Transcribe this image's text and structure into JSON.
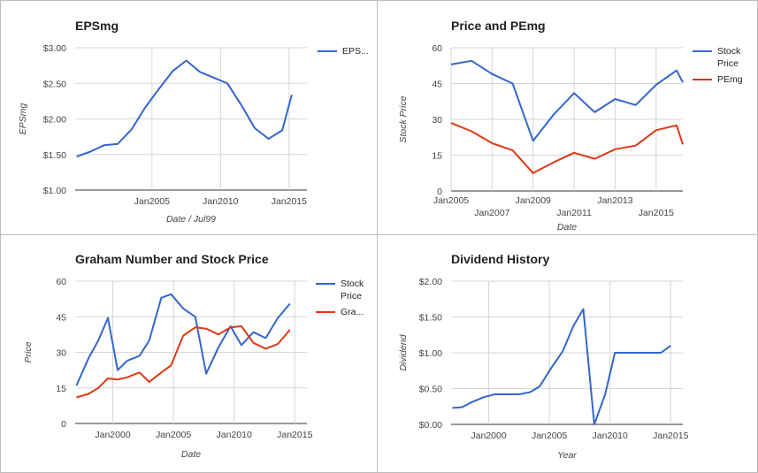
{
  "chart_data": [
    {
      "type": "line",
      "title": "EPSmg",
      "xlabel": "Date / Jul99",
      "ylabel": "EPSmg",
      "xlim": [
        1999.4,
        2016.3
      ],
      "ylim": [
        1.0,
        3.0
      ],
      "yticks": [
        {
          "v": 1.0,
          "t": "$1.00"
        },
        {
          "v": 1.5,
          "t": "$1.50"
        },
        {
          "v": 2.0,
          "t": "$2.00"
        },
        {
          "v": 2.5,
          "t": "$2.50"
        },
        {
          "v": 3.0,
          "t": "$3.00"
        }
      ],
      "xticks": [
        {
          "v": 2005,
          "t": "Jan2005"
        },
        {
          "v": 2010,
          "t": "Jan2010"
        },
        {
          "v": 2015,
          "t": "Jan2015"
        }
      ],
      "grid": true,
      "legend": "right",
      "series": [
        {
          "name": "EPS...",
          "color": "#3366cc",
          "points": [
            [
              1999.5,
              1.47
            ],
            [
              2000.5,
              1.54
            ],
            [
              2001.5,
              1.63
            ],
            [
              2002.5,
              1.65
            ],
            [
              2003.5,
              1.85
            ],
            [
              2004.5,
              2.16
            ],
            [
              2005.5,
              2.42
            ],
            [
              2006.5,
              2.67
            ],
            [
              2007.5,
              2.82
            ],
            [
              2008.5,
              2.66
            ],
            [
              2009.5,
              2.58
            ],
            [
              2010.5,
              2.5
            ],
            [
              2011.5,
              2.2
            ],
            [
              2012.5,
              1.87
            ],
            [
              2013.5,
              1.72
            ],
            [
              2014.5,
              1.84
            ],
            [
              2015.2,
              2.34
            ]
          ]
        }
      ]
    },
    {
      "type": "line",
      "title": "Price and PEmg",
      "xlabel": "Date",
      "ylabel": "Stock Price",
      "xlim": [
        2005.0,
        2016.3
      ],
      "ylim": [
        0,
        60
      ],
      "yticks": [
        {
          "v": 0,
          "t": "0"
        },
        {
          "v": 15,
          "t": "15"
        },
        {
          "v": 30,
          "t": "30"
        },
        {
          "v": 45,
          "t": "45"
        },
        {
          "v": 60,
          "t": "60"
        }
      ],
      "xticks": [
        {
          "v": 2005,
          "t": "Jan2005",
          "row": 0
        },
        {
          "v": 2007,
          "t": "Jan2007",
          "row": 1
        },
        {
          "v": 2009,
          "t": "Jan2009",
          "row": 0
        },
        {
          "v": 2011,
          "t": "Jan2011",
          "row": 1
        },
        {
          "v": 2013,
          "t": "Jan2013",
          "row": 0
        },
        {
          "v": 2015,
          "t": "Jan2015",
          "row": 1
        }
      ],
      "grid": true,
      "legend": "right",
      "series": [
        {
          "name": "Stock Price",
          "color": "#3366cc",
          "points": [
            [
              2005.0,
              53.0
            ],
            [
              2006.0,
              54.5
            ],
            [
              2007.0,
              49.0
            ],
            [
              2008.0,
              45.0
            ],
            [
              2009.0,
              21.0
            ],
            [
              2010.0,
              32.0
            ],
            [
              2011.0,
              41.0
            ],
            [
              2012.0,
              33.0
            ],
            [
              2013.0,
              38.5
            ],
            [
              2014.0,
              36.0
            ],
            [
              2015.0,
              44.5
            ],
            [
              2016.0,
              50.5
            ],
            [
              2016.3,
              45.5
            ]
          ]
        },
        {
          "name": "PEmg",
          "color": "#dc3912",
          "points": [
            [
              2005.0,
              28.5
            ],
            [
              2006.0,
              25.0
            ],
            [
              2007.0,
              20.0
            ],
            [
              2008.0,
              17.0
            ],
            [
              2009.0,
              7.5
            ],
            [
              2010.0,
              12.0
            ],
            [
              2011.0,
              16.0
            ],
            [
              2012.0,
              13.5
            ],
            [
              2013.0,
              17.5
            ],
            [
              2014.0,
              19.0
            ],
            [
              2015.0,
              25.5
            ],
            [
              2016.0,
              27.5
            ],
            [
              2016.3,
              19.5
            ]
          ]
        }
      ]
    },
    {
      "type": "line",
      "title": "Graham Number and Stock Price",
      "xlabel": "Date",
      "ylabel": "Price",
      "xlim": [
        1996.9,
        2016.0
      ],
      "ylim": [
        0,
        60
      ],
      "yticks": [
        {
          "v": 0,
          "t": "0"
        },
        {
          "v": 15,
          "t": "15"
        },
        {
          "v": 30,
          "t": "30"
        },
        {
          "v": 45,
          "t": "45"
        },
        {
          "v": 60,
          "t": "60"
        }
      ],
      "xticks": [
        {
          "v": 2000,
          "t": "Jan2000"
        },
        {
          "v": 2005,
          "t": "Jan2005"
        },
        {
          "v": 2010,
          "t": "Jan2010"
        },
        {
          "v": 2015,
          "t": "Jan2015"
        }
      ],
      "grid": true,
      "legend": "right",
      "series": [
        {
          "name": "Stock Price",
          "color": "#3366cc",
          "points": [
            [
              1997.0,
              16.0
            ],
            [
              1998.0,
              27.5
            ],
            [
              1998.8,
              35.0
            ],
            [
              1999.6,
              44.5
            ],
            [
              2000.4,
              22.5
            ],
            [
              2001.2,
              26.5
            ],
            [
              2002.2,
              28.5
            ],
            [
              2003.0,
              35.0
            ],
            [
              2004.0,
              53.0
            ],
            [
              2004.8,
              54.5
            ],
            [
              2005.8,
              48.5
            ],
            [
              2006.8,
              45.0
            ],
            [
              2007.7,
              21.0
            ],
            [
              2008.7,
              32.0
            ],
            [
              2009.7,
              41.0
            ],
            [
              2010.6,
              33.0
            ],
            [
              2011.6,
              38.5
            ],
            [
              2012.6,
              36.0
            ],
            [
              2013.6,
              44.5
            ],
            [
              2014.6,
              50.5
            ]
          ]
        },
        {
          "name": "Gra...",
          "color": "#dc3912",
          "points": [
            [
              1997.0,
              11.0
            ],
            [
              1998.0,
              12.5
            ],
            [
              1998.8,
              15.0
            ],
            [
              1999.6,
              19.0
            ],
            [
              2000.4,
              18.5
            ],
            [
              2001.2,
              19.5
            ],
            [
              2002.2,
              21.5
            ],
            [
              2003.0,
              17.5
            ],
            [
              2004.0,
              21.5
            ],
            [
              2004.8,
              24.5
            ],
            [
              2005.8,
              37.0
            ],
            [
              2006.8,
              40.5
            ],
            [
              2007.7,
              40.0
            ],
            [
              2008.7,
              37.5
            ],
            [
              2009.7,
              40.5
            ],
            [
              2010.6,
              41.0
            ],
            [
              2011.6,
              34.0
            ],
            [
              2012.6,
              31.5
            ],
            [
              2013.6,
              33.5
            ],
            [
              2014.6,
              39.5
            ]
          ]
        }
      ]
    },
    {
      "type": "line",
      "title": "Dividend History",
      "xlabel": "Year",
      "ylabel": "Dividend",
      "xlim": [
        1996.9,
        2016.0
      ],
      "ylim": [
        0,
        2.0
      ],
      "yticks": [
        {
          "v": 0,
          "t": "$0.00"
        },
        {
          "v": 0.5,
          "t": "$0.50"
        },
        {
          "v": 1.0,
          "t": "$1.00"
        },
        {
          "v": 1.5,
          "t": "$1.50"
        },
        {
          "v": 2.0,
          "t": "$2.00"
        }
      ],
      "xticks": [
        {
          "v": 2000,
          "t": "Jan2000"
        },
        {
          "v": 2005,
          "t": "Jan2005"
        },
        {
          "v": 2010,
          "t": "Jan2010"
        },
        {
          "v": 2015,
          "t": "Jan2015"
        }
      ],
      "grid": true,
      "legend": "none",
      "series": [
        {
          "name": "",
          "color": "#3366cc",
          "points": [
            [
              1997.0,
              0.23
            ],
            [
              1997.8,
              0.24
            ],
            [
              1998.6,
              0.31
            ],
            [
              1999.6,
              0.38
            ],
            [
              2000.5,
              0.42
            ],
            [
              2001.5,
              0.42
            ],
            [
              2002.5,
              0.42
            ],
            [
              2003.4,
              0.45
            ],
            [
              2004.2,
              0.53
            ],
            [
              2005.2,
              0.8
            ],
            [
              2006.1,
              1.02
            ],
            [
              2007.0,
              1.38
            ],
            [
              2007.8,
              1.61
            ],
            [
              2008.7,
              0.0
            ],
            [
              2009.6,
              0.42
            ],
            [
              2010.4,
              1.0
            ],
            [
              2011.3,
              1.0
            ],
            [
              2012.3,
              1.0
            ],
            [
              2013.3,
              1.0
            ],
            [
              2014.2,
              1.0
            ],
            [
              2015.0,
              1.1
            ]
          ]
        }
      ]
    }
  ]
}
